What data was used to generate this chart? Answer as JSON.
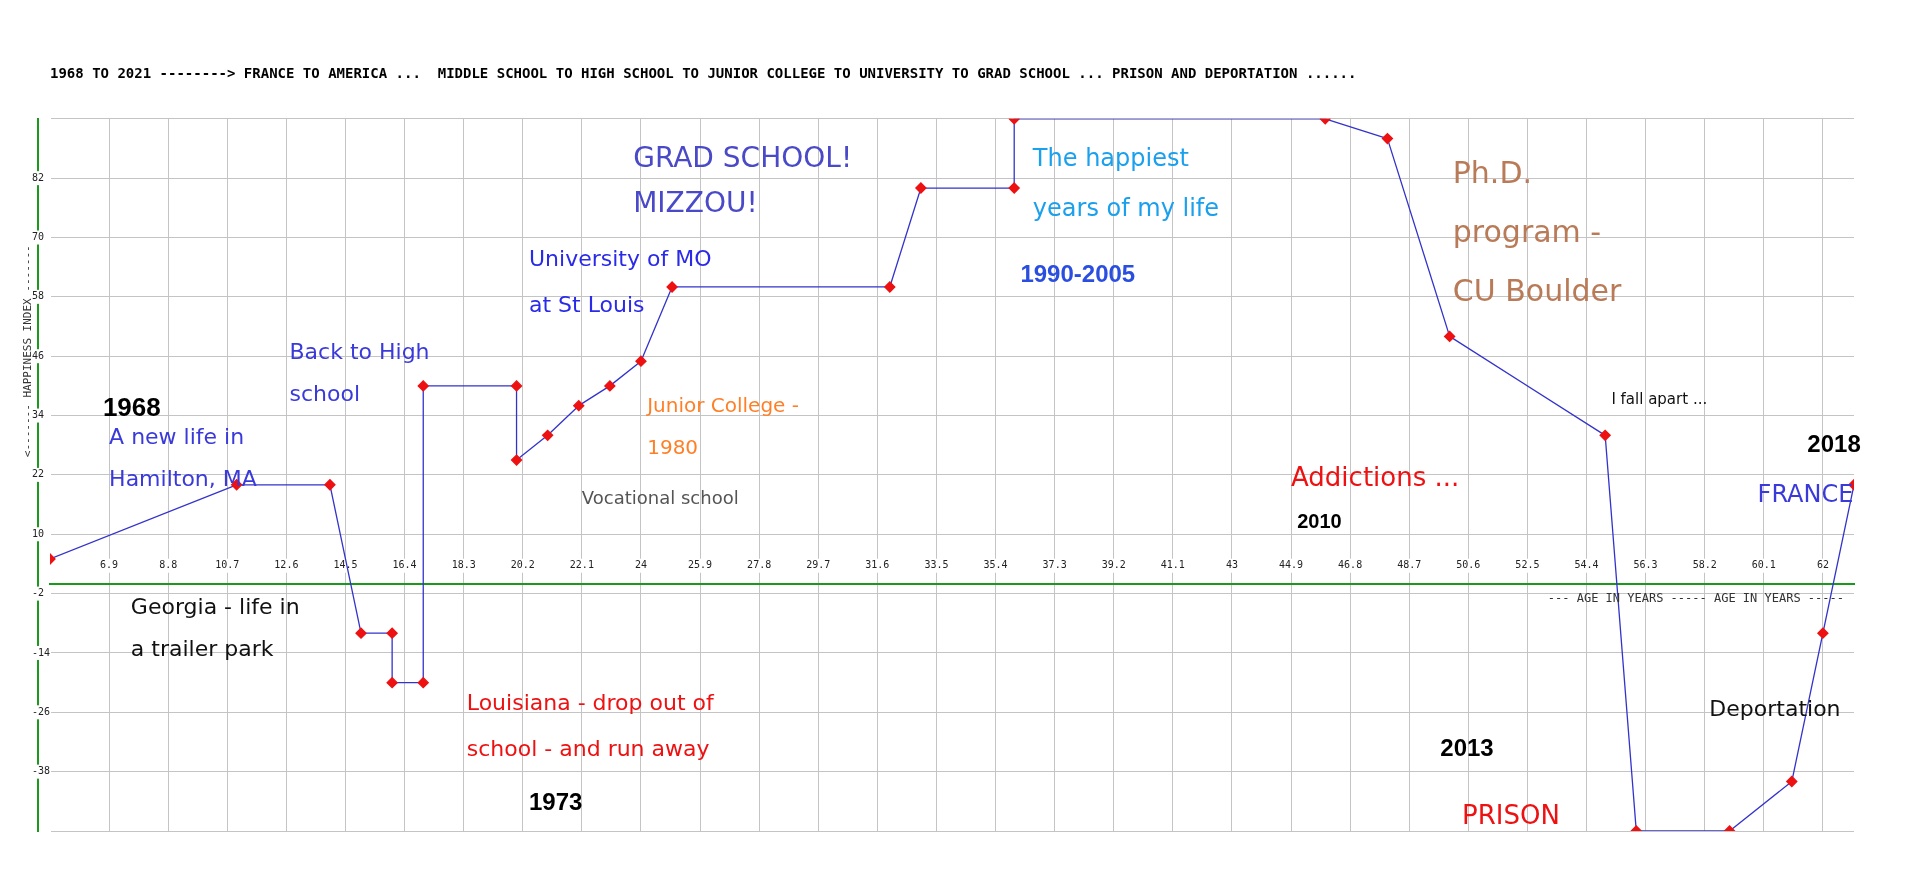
{
  "chart_data": {
    "type": "line",
    "title": "1968 TO 2021 --------> FRANCE TO AMERICA ...  MIDDLE SCHOOL TO HIGH SCHOOL TO JUNIOR COLLEGE TO UNIVERSITY TO GRAD SCHOOL ... PRISON AND DEPORTATION ......",
    "xlabel": "--- AGE IN YEARS ----- AGE IN YEARS -----",
    "ylabel": "<------- HAPPINESS INDEX -------",
    "series": [
      {
        "color": "#3333cc",
        "x": [
          5,
          11,
          14,
          15,
          16,
          16,
          17,
          17,
          20,
          20,
          21,
          22,
          23,
          24,
          25,
          32,
          33,
          36,
          36,
          46,
          48,
          50,
          55,
          56,
          59,
          61,
          62,
          63
        ],
        "values": [
          5,
          20,
          20,
          -10,
          -10,
          -20,
          -20,
          40,
          40,
          25,
          30,
          36,
          40,
          45,
          60,
          60,
          80,
          80,
          94,
          94,
          90,
          50,
          30,
          -50,
          -50,
          -40,
          -10,
          20
        ]
      }
    ],
    "marker": "diamond",
    "line_style": "solid",
    "grid": true,
    "legend": false,
    "xlim": [
      5,
      63
    ],
    "xticks": [
      6.9,
      8.8,
      10.7,
      12.6,
      14.5,
      16.4,
      18.3,
      20.2,
      22.1,
      24,
      25.9,
      27.8,
      29.7,
      31.6,
      33.5,
      35.4,
      37.3,
      39.2,
      41.1,
      43,
      44.9,
      46.8,
      48.7,
      50.6,
      52.5,
      54.4,
      56.3,
      58.2,
      60.1,
      62
    ],
    "ylim": [
      -50,
      94
    ],
    "yticks": [
      {
        "value": -50,
        "label": null
      },
      -38,
      -26,
      -14,
      -2,
      10,
      22,
      34,
      46,
      58,
      70,
      82,
      {
        "value": 94,
        "label": null
      }
    ],
    "annotations": [
      "1968",
      "A new life in\nHamilton, MA",
      "Back to High\nschool",
      "Georgia - life in\na trailer park",
      "Louisiana - drop out of\nschool - and run away",
      "1973",
      "Vocational school",
      "University of MO\nat St Louis",
      "GRAD SCHOOL!\nMIZZOU!",
      "Junior College -\n1980",
      "The happiest\nyears of my life",
      "1990-2005",
      "Ph.D.\nprogram -\nCU Boulder",
      "I fall apart ...",
      "Addictions ...",
      "2010",
      "2018",
      "FRANCE",
      "Deportation",
      "2013",
      "PRISON"
    ]
  }
}
